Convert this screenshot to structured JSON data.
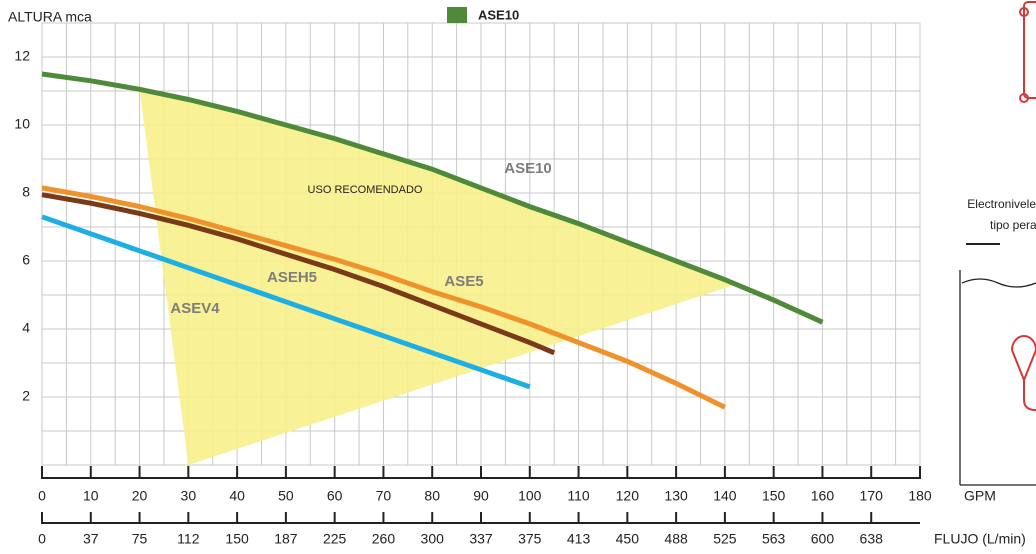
{
  "chart_data": {
    "type": "line",
    "y_label": "ALTURA mca",
    "x_label": "GPM",
    "x2_label": "FLUJO (L/min)",
    "xlim": [
      0,
      180
    ],
    "xticks": [
      0,
      10,
      20,
      30,
      40,
      50,
      60,
      70,
      80,
      90,
      100,
      110,
      120,
      130,
      140,
      150,
      160,
      170,
      180
    ],
    "xminor": [
      5,
      15,
      25,
      35,
      45,
      55,
      65,
      75,
      85,
      95,
      105,
      115,
      125,
      135,
      145,
      155,
      165,
      175
    ],
    "x2_categories": [
      "0",
      "37",
      "75",
      "112",
      "150",
      "187",
      "225",
      "260",
      "300",
      "337",
      "375",
      "413",
      "450",
      "488",
      "525",
      "563",
      "600",
      "638"
    ],
    "ylim": [
      0,
      13
    ],
    "yticks": [
      2,
      4,
      6,
      8,
      10,
      12
    ],
    "yminor": [
      1,
      3,
      5,
      7,
      9,
      11,
      13
    ],
    "grid": true,
    "legend_series": [
      0
    ],
    "series": [
      {
        "name": "ASE10",
        "color": "#4f8a3b",
        "x": [
          0,
          10,
          20,
          30,
          40,
          50,
          60,
          70,
          80,
          90,
          100,
          110,
          120,
          130,
          140,
          150,
          160
        ],
        "values": [
          11.5,
          11.3,
          11.05,
          10.75,
          10.4,
          10.0,
          9.6,
          9.15,
          8.7,
          8.15,
          7.6,
          7.1,
          6.55,
          6.0,
          5.45,
          4.85,
          4.2
        ]
      },
      {
        "name": "ASE5",
        "color": "#f0922b",
        "x": [
          0,
          10,
          20,
          30,
          40,
          50,
          60,
          70,
          80,
          90,
          100,
          110,
          120,
          130,
          140
        ],
        "values": [
          8.15,
          7.9,
          7.6,
          7.25,
          6.85,
          6.45,
          6.05,
          5.6,
          5.1,
          4.65,
          4.15,
          3.6,
          3.05,
          2.4,
          1.7
        ]
      },
      {
        "name": "ASEH5",
        "color": "#7a3a18",
        "x": [
          0,
          10,
          20,
          30,
          40,
          50,
          60,
          70,
          80,
          90,
          100,
          105
        ],
        "values": [
          7.95,
          7.7,
          7.4,
          7.05,
          6.65,
          6.2,
          5.75,
          5.25,
          4.7,
          4.15,
          3.6,
          3.3
        ]
      },
      {
        "name": "ASEV4",
        "color": "#1eaee6",
        "x": [
          0,
          10,
          20,
          30,
          40,
          50,
          60,
          70,
          80,
          90,
          100
        ],
        "values": [
          7.3,
          6.8,
          6.3,
          5.8,
          5.3,
          4.8,
          4.3,
          3.8,
          3.3,
          2.8,
          2.3
        ]
      }
    ],
    "region": {
      "label": "USO RECOMENDADO",
      "color": "#f7f08a",
      "x": [
        20,
        40,
        60,
        80,
        100,
        120,
        142,
        30
      ],
      "y": [
        11.05,
        10.4,
        9.6,
        8.7,
        7.6,
        6.55,
        5.3,
        0
      ]
    }
  },
  "side_diagram": {
    "lines": [
      "Electronivele",
      "tipo pera"
    ]
  }
}
